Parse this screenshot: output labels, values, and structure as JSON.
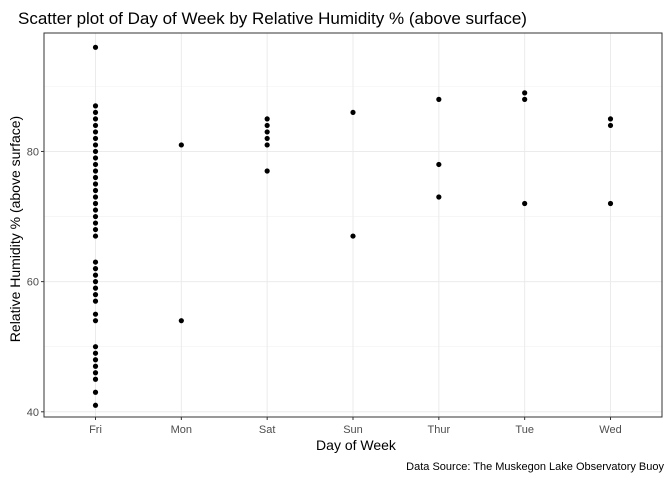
{
  "chart_data": {
    "type": "scatter",
    "title": "Scatter plot of Day of Week by Relative Humidity % (above surface)",
    "xlabel": "Day of Week",
    "ylabel": "Relative Humidity % (above surface)",
    "caption": "Data Source: The Muskegon Lake Observatory Buoy",
    "categories": [
      "Fri",
      "Mon",
      "Sat",
      "Sun",
      "Thur",
      "Tue",
      "Wed"
    ],
    "ylim": [
      39.2,
      98.2
    ],
    "yticks": [
      40,
      60,
      80
    ],
    "grid": true,
    "point_color": "#000000",
    "points": [
      {
        "x": "Fri",
        "y": 96
      },
      {
        "x": "Fri",
        "y": 87
      },
      {
        "x": "Fri",
        "y": 86
      },
      {
        "x": "Fri",
        "y": 85
      },
      {
        "x": "Fri",
        "y": 84
      },
      {
        "x": "Fri",
        "y": 83
      },
      {
        "x": "Fri",
        "y": 82
      },
      {
        "x": "Fri",
        "y": 81
      },
      {
        "x": "Fri",
        "y": 80
      },
      {
        "x": "Fri",
        "y": 79
      },
      {
        "x": "Fri",
        "y": 78
      },
      {
        "x": "Fri",
        "y": 77
      },
      {
        "x": "Fri",
        "y": 76
      },
      {
        "x": "Fri",
        "y": 75
      },
      {
        "x": "Fri",
        "y": 74
      },
      {
        "x": "Fri",
        "y": 73
      },
      {
        "x": "Fri",
        "y": 72
      },
      {
        "x": "Fri",
        "y": 71
      },
      {
        "x": "Fri",
        "y": 70
      },
      {
        "x": "Fri",
        "y": 69
      },
      {
        "x": "Fri",
        "y": 68
      },
      {
        "x": "Fri",
        "y": 67
      },
      {
        "x": "Fri",
        "y": 63
      },
      {
        "x": "Fri",
        "y": 62
      },
      {
        "x": "Fri",
        "y": 61
      },
      {
        "x": "Fri",
        "y": 60
      },
      {
        "x": "Fri",
        "y": 59
      },
      {
        "x": "Fri",
        "y": 58
      },
      {
        "x": "Fri",
        "y": 57
      },
      {
        "x": "Fri",
        "y": 55
      },
      {
        "x": "Fri",
        "y": 54
      },
      {
        "x": "Fri",
        "y": 50
      },
      {
        "x": "Fri",
        "y": 49
      },
      {
        "x": "Fri",
        "y": 48
      },
      {
        "x": "Fri",
        "y": 47
      },
      {
        "x": "Fri",
        "y": 46
      },
      {
        "x": "Fri",
        "y": 45
      },
      {
        "x": "Fri",
        "y": 43
      },
      {
        "x": "Fri",
        "y": 41
      },
      {
        "x": "Mon",
        "y": 81
      },
      {
        "x": "Mon",
        "y": 54
      },
      {
        "x": "Sat",
        "y": 85
      },
      {
        "x": "Sat",
        "y": 84
      },
      {
        "x": "Sat",
        "y": 83
      },
      {
        "x": "Sat",
        "y": 82
      },
      {
        "x": "Sat",
        "y": 81
      },
      {
        "x": "Sat",
        "y": 77
      },
      {
        "x": "Sun",
        "y": 86
      },
      {
        "x": "Sun",
        "y": 67
      },
      {
        "x": "Thur",
        "y": 88
      },
      {
        "x": "Thur",
        "y": 78
      },
      {
        "x": "Thur",
        "y": 73
      },
      {
        "x": "Tue",
        "y": 89
      },
      {
        "x": "Tue",
        "y": 88
      },
      {
        "x": "Tue",
        "y": 72
      },
      {
        "x": "Wed",
        "y": 85
      },
      {
        "x": "Wed",
        "y": 84
      },
      {
        "x": "Wed",
        "y": 72
      }
    ]
  }
}
